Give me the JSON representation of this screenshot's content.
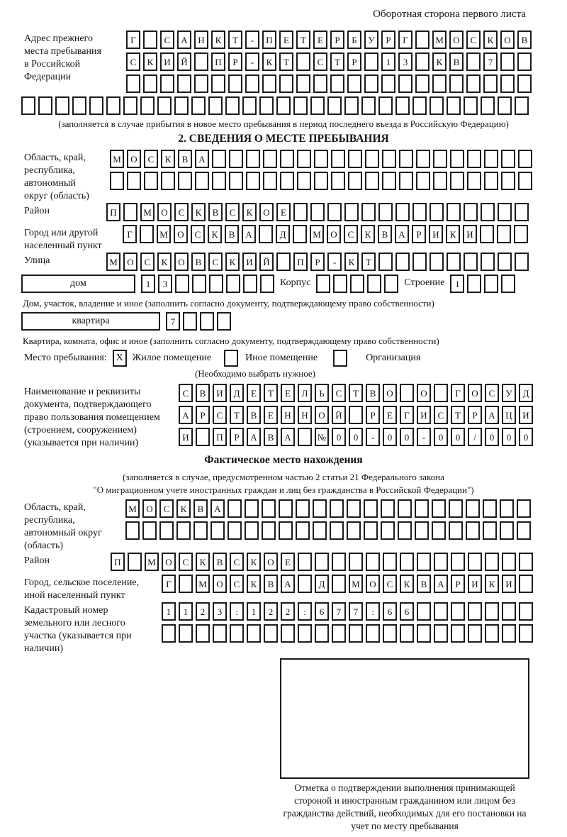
{
  "header": {
    "side_note": "Оборотная сторона первого листа"
  },
  "prev_address": {
    "label": "Адрес прежнего места пребывания в Российской Федерации",
    "rows": [
      {
        "text": "Г САНКТ-ПЕТЕРБУРГ МОСКОВ",
        "length": 24
      },
      {
        "text": "СКИЙ ПР-КТ СТР 13 КВ 7",
        "length": 24
      },
      {
        "text": "",
        "length": 24
      },
      {
        "text": "",
        "length": 30
      }
    ],
    "note": "(заполняется в случае прибытия в новое место пребывания в период последнего въезда в Российскую Федерацию)"
  },
  "section2": {
    "title": "2. СВЕДЕНИЯ О МЕСТЕ ПРЕБЫВАНИЯ",
    "region": {
      "label": "Область, край, республика, автономный округ (область)",
      "rows": [
        {
          "text": "МОСКВА",
          "length": 25
        },
        {
          "text": "",
          "length": 25
        }
      ]
    },
    "district": {
      "label": "Район",
      "row": {
        "text": "П МОСКВСКОЕ",
        "length": 25
      }
    },
    "city": {
      "label": "Город или другой населенный пункт",
      "row": {
        "text": "Г МОСКВА Д МОСКВАРИКИ",
        "length": 24
      }
    },
    "street": {
      "label": "Улица",
      "row": {
        "text": "МОСКОВСКИЙ ПР-КТ",
        "length": 25
      }
    },
    "house_line": {
      "house_label": "дом",
      "house_row": {
        "text": "13",
        "length": 8
      },
      "korpus_label": "Корпус",
      "korpus_row": {
        "text": "",
        "length": 5
      },
      "stroenie_label": "Строение",
      "stroenie_row": {
        "text": "1",
        "length": 4
      }
    },
    "house_note": "Дом, участок, владение и иное (заполнить согласно документу, подтверждающему право собственности)",
    "apartment_line": {
      "label": "квартира",
      "row": {
        "text": "7",
        "length": 4
      }
    },
    "apartment_note": "Квартира, комната, офис и иное (заполнить согласно документу, подтверждающему право собственности)",
    "stay_type": {
      "label": "Место пребывания:",
      "options": [
        {
          "label": "Жилое помещение",
          "mark": "X"
        },
        {
          "label": "Иное помещение",
          "mark": ""
        },
        {
          "label": "Организация",
          "mark": ""
        }
      ],
      "note": "(Необходимо выбрать нужное)"
    },
    "doc": {
      "label": "Наименование и реквизиты документа, подтверждающего право пользования помещением (строением, сооружением) (указывается при наличии)",
      "rows": [
        {
          "text": "СВИДЕТЕЛЬСТВО О ГОСУД",
          "length": 21
        },
        {
          "text": "АРСТВЕННОЙ РЕГИСТРАЦИ",
          "length": 21
        },
        {
          "text": "И ПРАВА №00-00-00/000",
          "length": 21
        }
      ]
    }
  },
  "actual_location": {
    "title": "Фактическое место нахождения",
    "note_line1": "(заполняется в случае, предусмотренном частью 2 статьи 21 Федерального закона",
    "note_line2": "\"О миграционном учете иностранных граждан и лиц без гражданства в Российской Федерации\")",
    "region": {
      "label": "Область, край, республика, автономный округ (область)",
      "rows": [
        {
          "text": "МОСКВА",
          "length": 24
        },
        {
          "text": "",
          "length": 24
        }
      ]
    },
    "district": {
      "label": "Район",
      "row": {
        "text": "П МОСКВСКОЕ",
        "length": 25
      }
    },
    "city": {
      "label": "Город, сельское поселение, иной населенный пункт",
      "row": {
        "text": "Г МОСКВА Д МОСКВАРИКИ",
        "length": 22
      }
    },
    "cadastre": {
      "label": "Кадастровый номер земельного или лесного участка (указывается при наличии)",
      "rows": [
        {
          "text": "1123:122:677:66",
          "length": 22
        },
        {
          "text": "",
          "length": 22
        }
      ]
    }
  },
  "stamp": {
    "caption": "Отметка о подтверждении выполнения принимающей стороной и иностранным гражданином или лицом без гражданства действий, необходимых для его постановки на учет по месту пребывания"
  }
}
